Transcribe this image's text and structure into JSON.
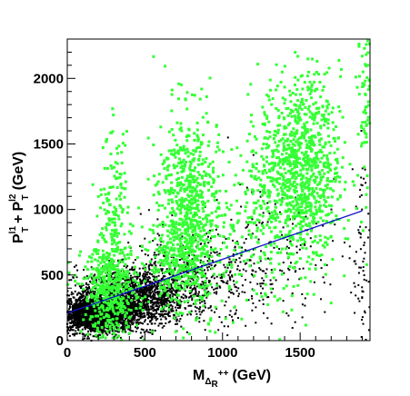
{
  "chart_data": {
    "type": "scatter",
    "title": "",
    "xlabel": {
      "main": "M",
      "sub": "Δ",
      "sub2": "R",
      "sup": "++",
      "unit": "(GeV)"
    },
    "ylabel": {
      "p1": "P",
      "sup1": "l1",
      "sub1": "T",
      "plus": "+",
      "p2": "P",
      "sup2": "l2",
      "sub2": "T",
      "unit": "(GeV)"
    },
    "xlim": [
      0,
      1950
    ],
    "ylim": [
      0,
      2300
    ],
    "xticks": [
      0,
      500,
      1000,
      1500
    ],
    "yticks": [
      0,
      500,
      1000,
      1500,
      2000
    ],
    "xtick_labels": [
      "0",
      "500",
      "1000",
      "1500"
    ],
    "ytick_labels": [
      "0",
      "500",
      "1000",
      "1500",
      "2000"
    ],
    "grid": false,
    "legend": "none",
    "colors": {
      "background": "#000000",
      "signal": "#33ff33",
      "fit": "#1111cc"
    },
    "series": [
      {
        "color": "#000000",
        "marker": "dot",
        "clusters": [
          {
            "cx": 180,
            "cy": 200,
            "sx": 130,
            "sy": 70,
            "n": 2200
          },
          {
            "cx": 420,
            "cy": 330,
            "sx": 180,
            "sy": 110,
            "n": 1600
          },
          {
            "cx": 800,
            "cy": 480,
            "sx": 220,
            "sy": 170,
            "n": 500
          },
          {
            "cx": 1350,
            "cy": 700,
            "sx": 280,
            "sy": 300,
            "n": 180
          },
          {
            "cx": 1900,
            "cy": 600,
            "sx": 30,
            "sy": 450,
            "n": 70
          }
        ]
      },
      {
        "color": "#33ff33",
        "marker": "cross",
        "clusters": [
          {
            "cx": 300,
            "cy": 900,
            "sx": 45,
            "sy": 330,
            "n": 180
          },
          {
            "cx": 280,
            "cy": 380,
            "sx": 90,
            "sy": 180,
            "n": 450
          },
          {
            "cx": 780,
            "cy": 1050,
            "sx": 95,
            "sy": 350,
            "n": 600
          },
          {
            "cx": 720,
            "cy": 620,
            "sx": 130,
            "sy": 200,
            "n": 300
          },
          {
            "cx": 1500,
            "cy": 1350,
            "sx": 130,
            "sy": 330,
            "n": 900
          },
          {
            "cx": 1300,
            "cy": 850,
            "sx": 230,
            "sy": 330,
            "n": 300
          },
          {
            "cx": 1920,
            "cy": 1900,
            "sx": 25,
            "sy": 350,
            "n": 90
          }
        ]
      },
      {
        "name": "",
        "type": "line",
        "color": "#1111cc",
        "x": [
          0,
          1900
        ],
        "y": [
          210,
          990
        ]
      }
    ]
  }
}
